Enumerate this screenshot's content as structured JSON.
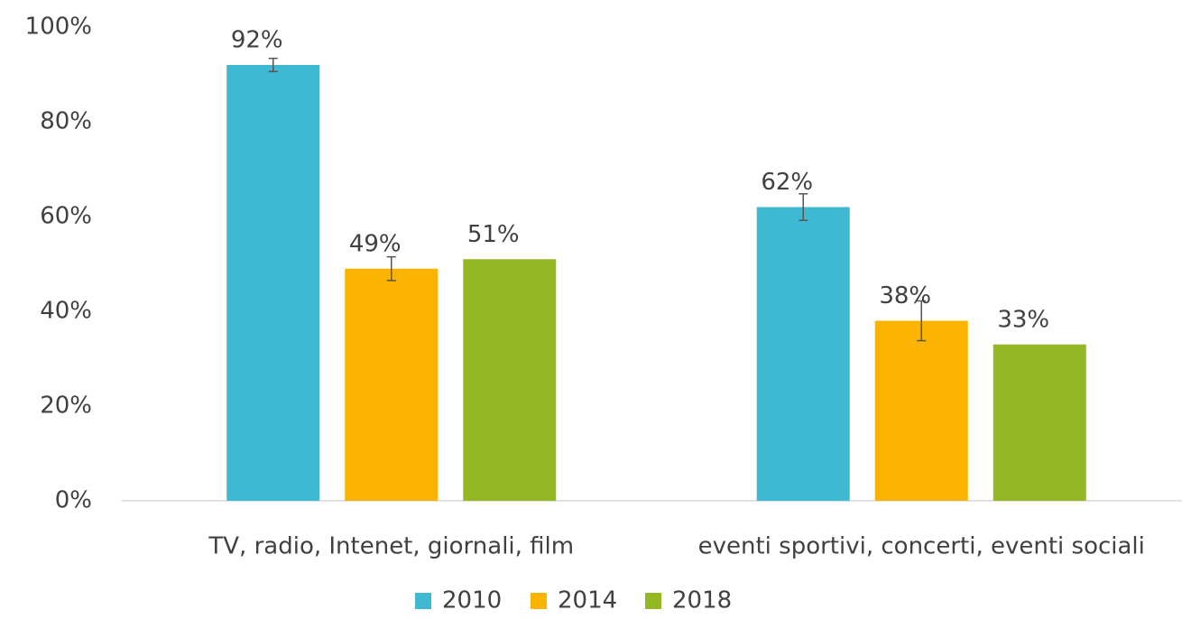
{
  "chart_data": {
    "type": "bar",
    "categories": [
      "TV, radio, Intenet, giornali, film",
      "eventi sportivi, concerti, eventi sociali"
    ],
    "series": [
      {
        "name": "2010",
        "color": "#3fb8d2",
        "values": [
          92,
          62
        ],
        "value_labels": [
          "92%",
          "62%"
        ],
        "errors": [
          1.4,
          2.8
        ]
      },
      {
        "name": "2014",
        "color": "#fab400",
        "values": [
          49,
          38
        ],
        "value_labels": [
          "49%",
          "38%"
        ],
        "errors": [
          2.5,
          4.2
        ]
      },
      {
        "name": "2018",
        "color": "#93b824",
        "values": [
          51,
          33
        ],
        "value_labels": [
          "51%",
          "33%"
        ]
      }
    ],
    "ylim": [
      0,
      100
    ],
    "yticks": [
      {
        "value": 0,
        "label": "0%"
      },
      {
        "value": 20,
        "label": "20%"
      },
      {
        "value": 40,
        "label": "40%"
      },
      {
        "value": 60,
        "label": "60%"
      },
      {
        "value": 80,
        "label": "80%"
      },
      {
        "value": 100,
        "label": "100%"
      }
    ],
    "legend": "bottom"
  }
}
